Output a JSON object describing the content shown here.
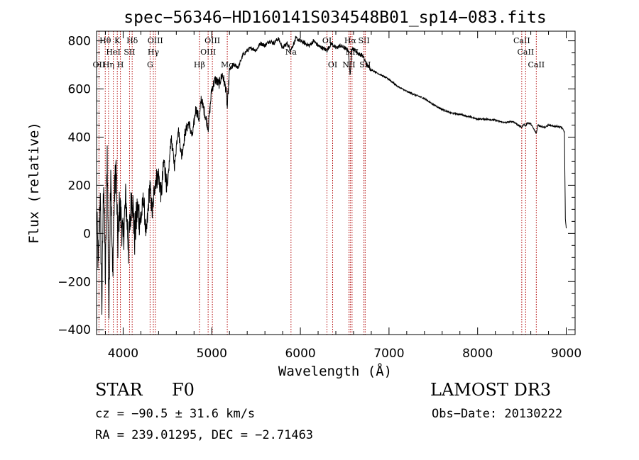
{
  "chart_data": {
    "type": "line",
    "title": "spec−56346−HD160141S034548B01_sp14−083.fits",
    "xlabel": "Wavelength (Å)",
    "ylabel": "Flux (relative)",
    "xlim": [
      3700,
      9100
    ],
    "ylim": [
      -420,
      840
    ],
    "xticks": [
      4000,
      5000,
      6000,
      7000,
      8000,
      9000
    ],
    "xtick_labels": [
      "4000",
      "5000",
      "6000",
      "7000",
      "8000",
      "9000"
    ],
    "yticks": [
      -400,
      -200,
      0,
      200,
      400,
      600,
      800
    ],
    "ytick_labels": [
      "−400",
      "−200",
      "0",
      "200",
      "400",
      "600",
      "800"
    ],
    "grid": false,
    "series": [
      {
        "name": "spectrum",
        "x": [
          3700,
          3720,
          3740,
          3760,
          3780,
          3800,
          3820,
          3840,
          3860,
          3880,
          3900,
          3920,
          3940,
          3960,
          3980,
          4000,
          4030,
          4060,
          4100,
          4130,
          4160,
          4200,
          4230,
          4260,
          4300,
          4330,
          4360,
          4400,
          4430,
          4460,
          4500,
          4540,
          4580,
          4620,
          4660,
          4700,
          4740,
          4780,
          4820,
          4861,
          4880,
          4920,
          4960,
          5000,
          5040,
          5080,
          5120,
          5160,
          5175,
          5200,
          5250,
          5300,
          5350,
          5400,
          5450,
          5500,
          5550,
          5600,
          5650,
          5700,
          5750,
          5800,
          5850,
          5890,
          5950,
          6000,
          6050,
          6100,
          6150,
          6200,
          6250,
          6300,
          6350,
          6400,
          6450,
          6500,
          6540,
          6563,
          6580,
          6620,
          6660,
          6700,
          6750,
          6800,
          6850,
          6900,
          6950,
          7000,
          7100,
          7200,
          7300,
          7400,
          7500,
          7600,
          7700,
          7800,
          7900,
          8000,
          8100,
          8200,
          8300,
          8400,
          8498,
          8520,
          8542,
          8560,
          8600,
          8662,
          8680,
          8720,
          8760,
          8800,
          8850,
          8900,
          8950,
          8980,
          8990,
          9000
        ],
        "y": [
          100,
          -150,
          180,
          -300,
          250,
          -200,
          350,
          -340,
          300,
          -180,
          150,
          280,
          -50,
          120,
          50,
          -30,
          150,
          -60,
          180,
          -20,
          100,
          50,
          150,
          -20,
          200,
          80,
          220,
          240,
          160,
          300,
          180,
          400,
          280,
          440,
          320,
          420,
          460,
          400,
          520,
          470,
          560,
          500,
          440,
          600,
          640,
          620,
          660,
          600,
          520,
          680,
          700,
          690,
          740,
          760,
          770,
          760,
          790,
          780,
          800,
          790,
          810,
          770,
          790,
          760,
          810,
          800,
          790,
          780,
          800,
          780,
          770,
          760,
          790,
          770,
          780,
          770,
          760,
          650,
          770,
          760,
          745,
          740,
          700,
          680,
          670,
          660,
          650,
          640,
          610,
          590,
          575,
          560,
          535,
          515,
          500,
          495,
          485,
          475,
          475,
          470,
          460,
          465,
          440,
          455,
          445,
          460,
          455,
          415,
          450,
          445,
          440,
          450,
          445,
          445,
          440,
          420,
          60,
          20
        ]
      }
    ],
    "lines": [
      {
        "name": "OII",
        "x": 3727,
        "row": 3
      },
      {
        "name": "Hθ",
        "x": 3798,
        "row": 1
      },
      {
        "name": "Hη",
        "x": 3835,
        "row": 3
      },
      {
        "name": "HeI",
        "x": 3889,
        "row": 2
      },
      {
        "name": "K",
        "x": 3934,
        "row": 1
      },
      {
        "name": "H",
        "x": 3969,
        "row": 3
      },
      {
        "name": "SII",
        "x": 4072,
        "row": 2
      },
      {
        "name": "Hδ",
        "x": 4102,
        "row": 1
      },
      {
        "name": "G",
        "x": 4304,
        "row": 3
      },
      {
        "name": "Hγ",
        "x": 4341,
        "row": 2
      },
      {
        "name": "OIII",
        "x": 4363,
        "row": 1
      },
      {
        "name": "Hβ",
        "x": 4861,
        "row": 3
      },
      {
        "name": "OIII",
        "x": 4959,
        "row": 2
      },
      {
        "name": "OIII",
        "x": 5007,
        "row": 1
      },
      {
        "name": "Mg",
        "x": 5175,
        "row": 3
      },
      {
        "name": "Na",
        "x": 5894,
        "row": 2
      },
      {
        "name": "OI",
        "x": 6300,
        "row": 1
      },
      {
        "name": "OI",
        "x": 6364,
        "row": 3
      },
      {
        "name": "NII",
        "x": 6548,
        "row": 3
      },
      {
        "name": "Hα",
        "x": 6563,
        "row": 1
      },
      {
        "name": "NII",
        "x": 6583,
        "row": 2
      },
      {
        "name": "SII",
        "x": 6717,
        "row": 1
      },
      {
        "name": "SII",
        "x": 6731,
        "row": 3
      },
      {
        "name": "CaII",
        "x": 8498,
        "row": 1
      },
      {
        "name": "CaII",
        "x": 8542,
        "row": 2
      },
      {
        "name": "CaII",
        "x": 8662,
        "row": 3
      }
    ]
  },
  "info": {
    "object_class": "STAR",
    "subclass": "F0",
    "survey": "LAMOST DR3",
    "cz": "cz = −90.5 ± 31.6 km/s",
    "obs_date": "Obs−Date: 20130222",
    "radec": "RA = 239.01295, DEC =  −2.71463"
  }
}
